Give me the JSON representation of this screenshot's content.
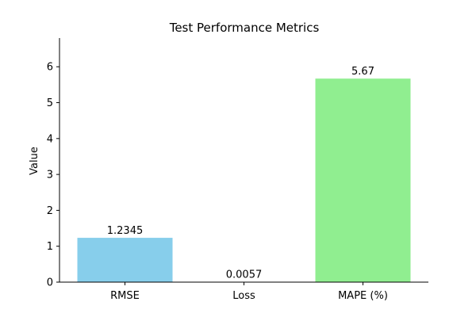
{
  "chart_data": {
    "type": "bar",
    "title": "Test Performance Metrics",
    "xlabel": "",
    "ylabel": "Value",
    "categories": [
      "RMSE",
      "Loss",
      "MAPE (%)"
    ],
    "values": [
      1.2345,
      0.0057,
      5.67
    ],
    "data_labels": [
      "1.2345",
      "0.0057",
      "5.67"
    ],
    "colors": [
      "#87ceeb",
      "#87ceeb",
      "#90ee90"
    ],
    "ylim": [
      0,
      6.8
    ],
    "yticks": [
      0,
      1,
      2,
      3,
      4,
      5,
      6
    ],
    "grid": false,
    "legend": "none"
  }
}
